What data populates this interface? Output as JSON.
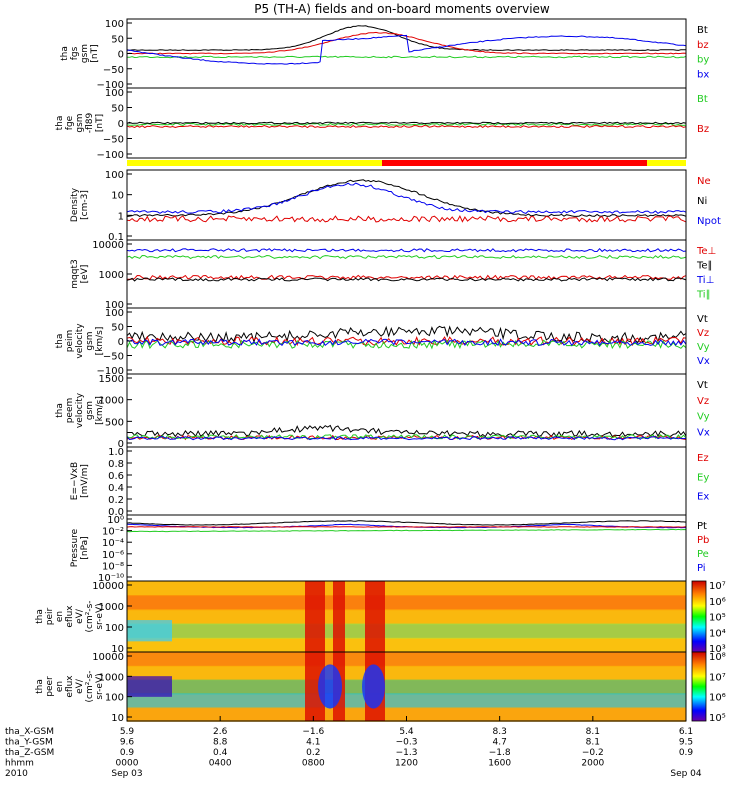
{
  "title": "P5 (TH-A) fields and on-board moments overview",
  "colors": {
    "black": "#000000",
    "red": "#e00000",
    "green": "#22cc22",
    "blue": "#0000ee",
    "yellow": "#ffff00",
    "bar_red": "#ff0000"
  },
  "chart_data": {
    "type": "line",
    "panels": [
      {
        "ylabel": [
          "tha",
          "fgs",
          "gsm",
          "[nT]"
        ],
        "ticks": [
          "100",
          "50",
          "0",
          "−50",
          "−100"
        ],
        "legend": [
          {
            "name": "Bt",
            "color": "black"
          },
          {
            "name": "bz",
            "color": "red"
          },
          {
            "name": "by",
            "color": "green"
          },
          {
            "name": "bx",
            "color": "blue"
          }
        ]
      },
      {
        "ylabel": [
          "tha",
          "fge",
          "gsm",
          "-fl89",
          "[nT]"
        ],
        "ticks": [
          "100",
          "50",
          "0",
          "−50",
          "−100"
        ],
        "legend": [
          {
            "name": "Bt",
            "color": "green"
          },
          {
            "name": "Bz",
            "color": "red"
          }
        ]
      },
      {
        "ylabel": [
          "Density",
          "[cm-3]"
        ],
        "ticks": [
          "100",
          "10",
          "1",
          "0.1"
        ],
        "legend": [
          {
            "name": "Ne",
            "color": "red"
          },
          {
            "name": "Ni",
            "color": "black"
          },
          {
            "name": "Npot",
            "color": "blue"
          }
        ]
      },
      {
        "ylabel": [
          "mqqt3",
          "[eV]"
        ],
        "ticks": [
          "10000",
          "1000",
          "100"
        ],
        "legend": [
          {
            "name": "Te⊥",
            "color": "red"
          },
          {
            "name": "Te∥",
            "color": "black"
          },
          {
            "name": "Ti⊥",
            "color": "blue"
          },
          {
            "name": "Ti∥",
            "color": "green"
          }
        ]
      },
      {
        "ylabel": [
          "tha",
          "peim",
          "velocity",
          "gsm",
          "[km/s]"
        ],
        "ticks": [
          "100",
          "50",
          "0",
          "−50",
          "−100"
        ],
        "legend": [
          {
            "name": "Vt",
            "color": "black"
          },
          {
            "name": "Vz",
            "color": "red"
          },
          {
            "name": "Vy",
            "color": "green"
          },
          {
            "name": "Vx",
            "color": "blue"
          }
        ]
      },
      {
        "ylabel": [
          "tha",
          "peem",
          "velocity",
          "gsm",
          "[km/s]"
        ],
        "ticks": [
          "1500",
          "1000",
          "500",
          "0"
        ],
        "legend": [
          {
            "name": "Vt",
            "color": "black"
          },
          {
            "name": "Vz",
            "color": "red"
          },
          {
            "name": "Vy",
            "color": "green"
          },
          {
            "name": "Vx",
            "color": "blue"
          }
        ]
      },
      {
        "ylabel": [
          "E=−VxB",
          "[mV/m]"
        ],
        "ticks": [
          "1.0",
          "0.8",
          "0.6",
          "0.4",
          "0.2",
          "0.0"
        ],
        "legend": [
          {
            "name": "Ez",
            "color": "red"
          },
          {
            "name": "Ey",
            "color": "green"
          },
          {
            "name": "Ex",
            "color": "blue"
          }
        ]
      },
      {
        "ylabel": [
          "Pressure",
          "[nPa]"
        ],
        "ticks": [
          "10⁰",
          "10⁻²",
          "10⁻⁴",
          "10⁻⁶",
          "10⁻⁸",
          "10⁻¹⁰"
        ],
        "legend": [
          {
            "name": "Pt",
            "color": "black"
          },
          {
            "name": "Pb",
            "color": "red"
          },
          {
            "name": "Pe",
            "color": "green"
          },
          {
            "name": "Pi",
            "color": "blue"
          }
        ]
      },
      {
        "ylabel": [
          "tha",
          "peir",
          "en",
          "eflux",
          "eV/",
          "(cm²-s-",
          "sr-eV)"
        ],
        "ticks": [
          "10000",
          "1000",
          "100",
          "10"
        ],
        "colorbar": [
          "10⁷",
          "10⁶",
          "10⁵",
          "10⁴",
          "10³"
        ]
      },
      {
        "ylabel": [
          "tha",
          "peer",
          "en",
          "eflux",
          "eV/",
          "(cm²-s-",
          "sr-eV)"
        ],
        "ticks": [
          "10000",
          "1000",
          "100",
          "10"
        ],
        "colorbar": [
          "10⁸",
          "10⁷",
          "10⁶",
          "10⁵"
        ]
      }
    ],
    "x_axis": {
      "row_labels": [
        "tha_X-GSM",
        "tha_Y-GSM",
        "tha_Z-GSM",
        "hhmm",
        "2010"
      ],
      "columns": [
        {
          "x": "5.9",
          "y": "9.6",
          "z": "0.9",
          "hhmm": "0000",
          "date": "Sep 03"
        },
        {
          "x": "2.6",
          "y": "8.8",
          "z": "0.4",
          "hhmm": "0400",
          "date": ""
        },
        {
          "x": "−1.6",
          "y": "4.1",
          "z": "0.2",
          "hhmm": "0800",
          "date": ""
        },
        {
          "x": "5.4",
          "y": "−0.3",
          "z": "−1.3",
          "hhmm": "1200",
          "date": ""
        },
        {
          "x": "8.3",
          "y": "4.7",
          "z": "−1.8",
          "hhmm": "1600",
          "date": ""
        },
        {
          "x": "8.1",
          "y": "8.1",
          "z": "−0.2",
          "hhmm": "2000",
          "date": ""
        },
        {
          "x": "6.1",
          "y": "9.5",
          "z": "0.9",
          "hhmm": "",
          "date": "Sep 04"
        }
      ]
    }
  }
}
